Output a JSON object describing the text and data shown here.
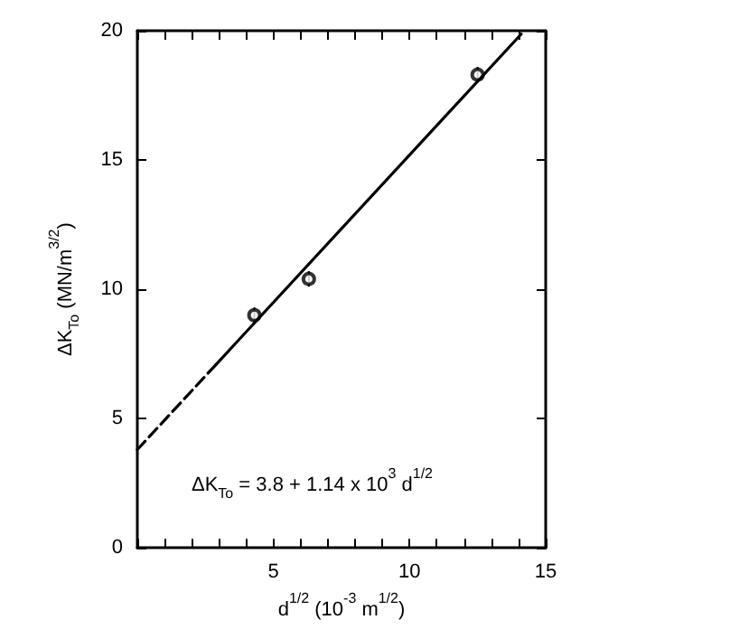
{
  "chart_data": {
    "type": "scatter",
    "xlabel": "d$^{1/2}$ (10$^{-3}$ m$^{1/2}$)",
    "ylabel": "ΔK$_{To}$ (MN/m$^{3/2}$)",
    "annotations": [
      "ΔK$_{To}$ = 3.8 + 1.14 x 10$^{3}$ d$^{1/2}$"
    ],
    "xlim": [
      0,
      15
    ],
    "ylim": [
      0,
      20
    ],
    "xticks": [
      {
        "value": 0,
        "label": null
      },
      {
        "value": 1,
        "label": null
      },
      {
        "value": 2,
        "label": null
      },
      {
        "value": 3,
        "label": null
      },
      {
        "value": 4,
        "label": null
      },
      5,
      {
        "value": 6,
        "label": null
      },
      {
        "value": 7,
        "label": null
      },
      {
        "value": 8,
        "label": null
      },
      {
        "value": 9,
        "label": null
      },
      10,
      {
        "value": 11,
        "label": null
      },
      {
        "value": 12,
        "label": null
      },
      {
        "value": 13,
        "label": null
      },
      {
        "value": 14,
        "label": null
      },
      15
    ],
    "yticks": [
      0,
      5,
      10,
      15,
      20
    ],
    "grid": false,
    "series": [
      {
        "color": "#000000",
        "x": [
          4.3,
          6.3,
          12.5
        ],
        "values": [
          9.0,
          10.4,
          18.3
        ],
        "errors": [
          0.3,
          0.3,
          0.3
        ],
        "marker": "circle"
      },
      {
        "type": "line",
        "color": "#000000",
        "x": [
          0,
          2.9
        ],
        "values": [
          3.8,
          7.1
        ],
        "line_style": "dashed",
        "marker": "none"
      },
      {
        "type": "line",
        "color": "#000000",
        "x": [
          2.9,
          14.1
        ],
        "values": [
          7.1,
          19.87
        ],
        "line_style": "solid",
        "marker": "none"
      }
    ]
  }
}
